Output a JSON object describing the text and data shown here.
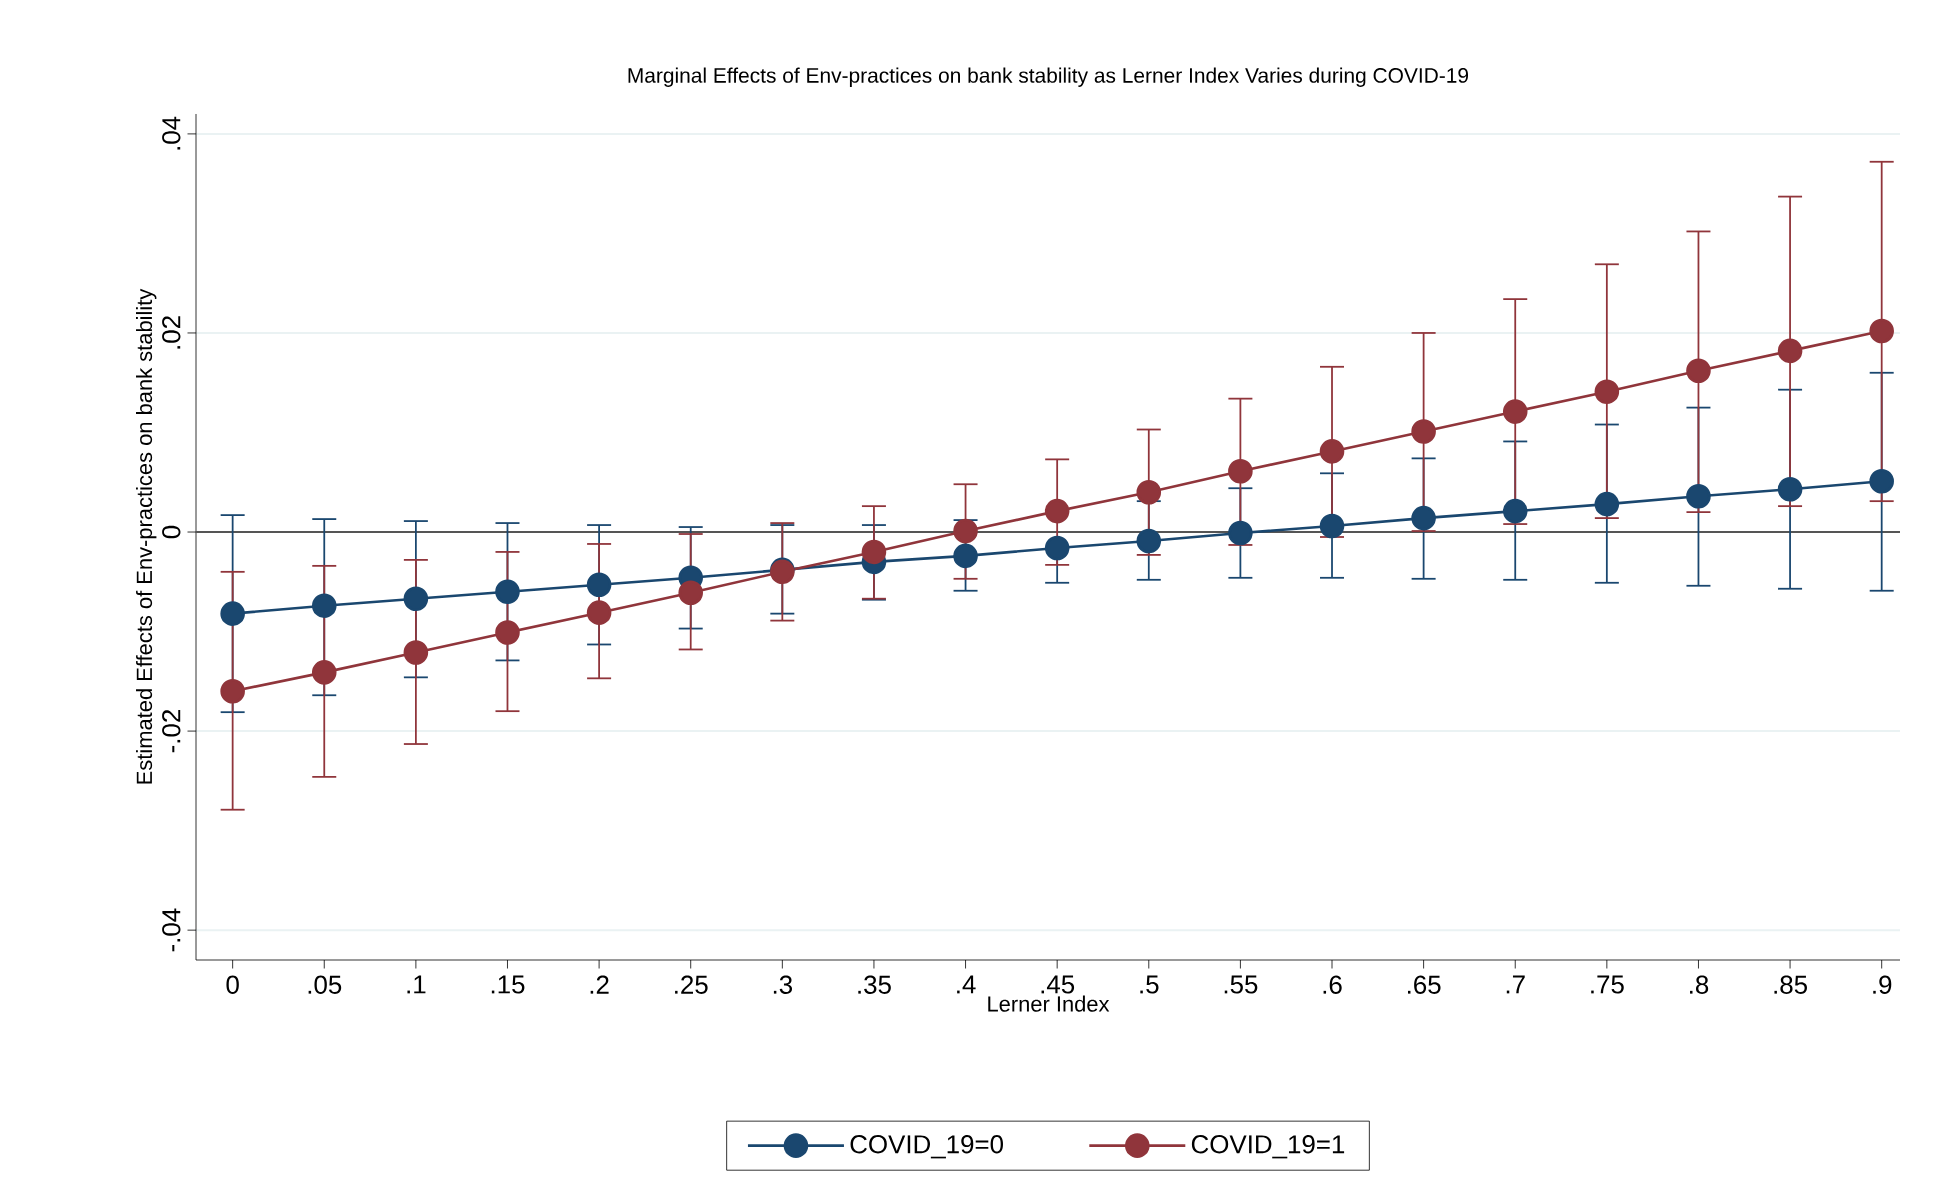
{
  "chart_data": {
    "type": "line",
    "title": "Marginal Effects of Env-practices on bank stability as Lerner Index Varies during COVID-19",
    "xlabel": "Lerner Index",
    "ylabel": "Estimated Effects of Env-practices on bank stability",
    "x": [
      0,
      0.05,
      0.1,
      0.15,
      0.2,
      0.25,
      0.3,
      0.35,
      0.4,
      0.45,
      0.5,
      0.55,
      0.6,
      0.65,
      0.7,
      0.75,
      0.8,
      0.85,
      0.9
    ],
    "series": [
      {
        "name": "COVID_19=0",
        "color": "#1a476f",
        "values": [
          -0.0082,
          -0.0074,
          -0.0067,
          -0.006,
          -0.0053,
          -0.0046,
          -0.0038,
          -0.003,
          -0.0024,
          -0.0016,
          -0.0009,
          -0.0001,
          0.0006,
          0.0014,
          0.0021,
          0.0028,
          0.0036,
          0.0043,
          0.0051
        ],
        "errors": [
          [
            -0.0181,
            0.0017
          ],
          [
            -0.0164,
            0.0013
          ],
          [
            -0.0146,
            0.0011
          ],
          [
            -0.0129,
            0.0009
          ],
          [
            -0.0113,
            0.0007
          ],
          [
            -0.0097,
            0.0005
          ],
          [
            -0.0082,
            0.0007
          ],
          [
            -0.0068,
            0.0007
          ],
          [
            -0.0059,
            0.0012
          ],
          [
            -0.0051,
            -0.0016
          ],
          [
            -0.0048,
            0.0031
          ],
          [
            -0.0046,
            0.0044
          ],
          [
            -0.0046,
            0.0059
          ],
          [
            -0.0047,
            0.0074
          ],
          [
            -0.0048,
            0.0091
          ],
          [
            -0.0051,
            0.0108
          ],
          [
            -0.0054,
            0.0125
          ],
          [
            -0.0057,
            0.0143
          ],
          [
            -0.0059,
            0.016
          ]
        ]
      },
      {
        "name": "COVID_19=1",
        "color": "#90353b",
        "values": [
          -0.016,
          -0.0141,
          -0.0121,
          -0.0101,
          -0.0081,
          -0.0061,
          -0.004,
          -0.002,
          0.0001,
          0.0021,
          0.004,
          0.0061,
          0.0081,
          0.0101,
          0.0121,
          0.0141,
          0.0162,
          0.0182,
          0.0202
        ],
        "errors": [
          [
            -0.0279,
            -0.004
          ],
          [
            -0.0246,
            -0.0034
          ],
          [
            -0.0213,
            -0.0028
          ],
          [
            -0.018,
            -0.002
          ],
          [
            -0.0147,
            -0.0012
          ],
          [
            -0.0118,
            -0.0002
          ],
          [
            -0.0089,
            0.0009
          ],
          [
            -0.0067,
            0.0026
          ],
          [
            -0.0047,
            0.0048
          ],
          [
            -0.0033,
            0.0073
          ],
          [
            -0.0023,
            0.0103
          ],
          [
            -0.0013,
            0.0134
          ],
          [
            -0.0005,
            0.0166
          ],
          [
            0.0001,
            0.02
          ],
          [
            0.0008,
            0.0234
          ],
          [
            0.0014,
            0.0269
          ],
          [
            0.002,
            0.0302
          ],
          [
            0.0026,
            0.0337
          ],
          [
            0.0031,
            0.0372
          ]
        ]
      }
    ],
    "xlim": [
      -0.02,
      0.91
    ],
    "ylim": [
      -0.043,
      0.042
    ],
    "xticks": [
      0,
      {
        "value": 0.05,
        "label": ".05"
      },
      {
        "value": 0.1,
        "label": ".1"
      },
      {
        "value": 0.15,
        "label": ".15"
      },
      {
        "value": 0.2,
        "label": ".2"
      },
      {
        "value": 0.25,
        "label": ".25"
      },
      {
        "value": 0.3,
        "label": ".3"
      },
      {
        "value": 0.35,
        "label": ".35"
      },
      {
        "value": 0.4,
        "label": ".4"
      },
      {
        "value": 0.45,
        "label": ".45"
      },
      {
        "value": 0.5,
        "label": ".5"
      },
      {
        "value": 0.55,
        "label": ".55"
      },
      {
        "value": 0.6,
        "label": ".6"
      },
      {
        "value": 0.65,
        "label": ".65"
      },
      {
        "value": 0.7,
        "label": ".7"
      },
      {
        "value": 0.75,
        "label": ".75"
      },
      {
        "value": 0.8,
        "label": ".8"
      },
      {
        "value": 0.85,
        "label": ".85"
      },
      {
        "value": 0.9,
        "label": ".9"
      }
    ],
    "yticks": [
      {
        "value": -0.04,
        "label": "-.04"
      },
      {
        "value": -0.02,
        "label": "-.02"
      },
      0,
      {
        "value": 0.02,
        "label": ".02"
      },
      {
        "value": 0.04,
        "label": ".04"
      }
    ],
    "ref_lines": [
      {
        "axis": "y",
        "value": 0,
        "color": "#555555"
      }
    ],
    "grid": "y",
    "legend": "bottom",
    "marker": "circle",
    "line_style": "solid"
  }
}
